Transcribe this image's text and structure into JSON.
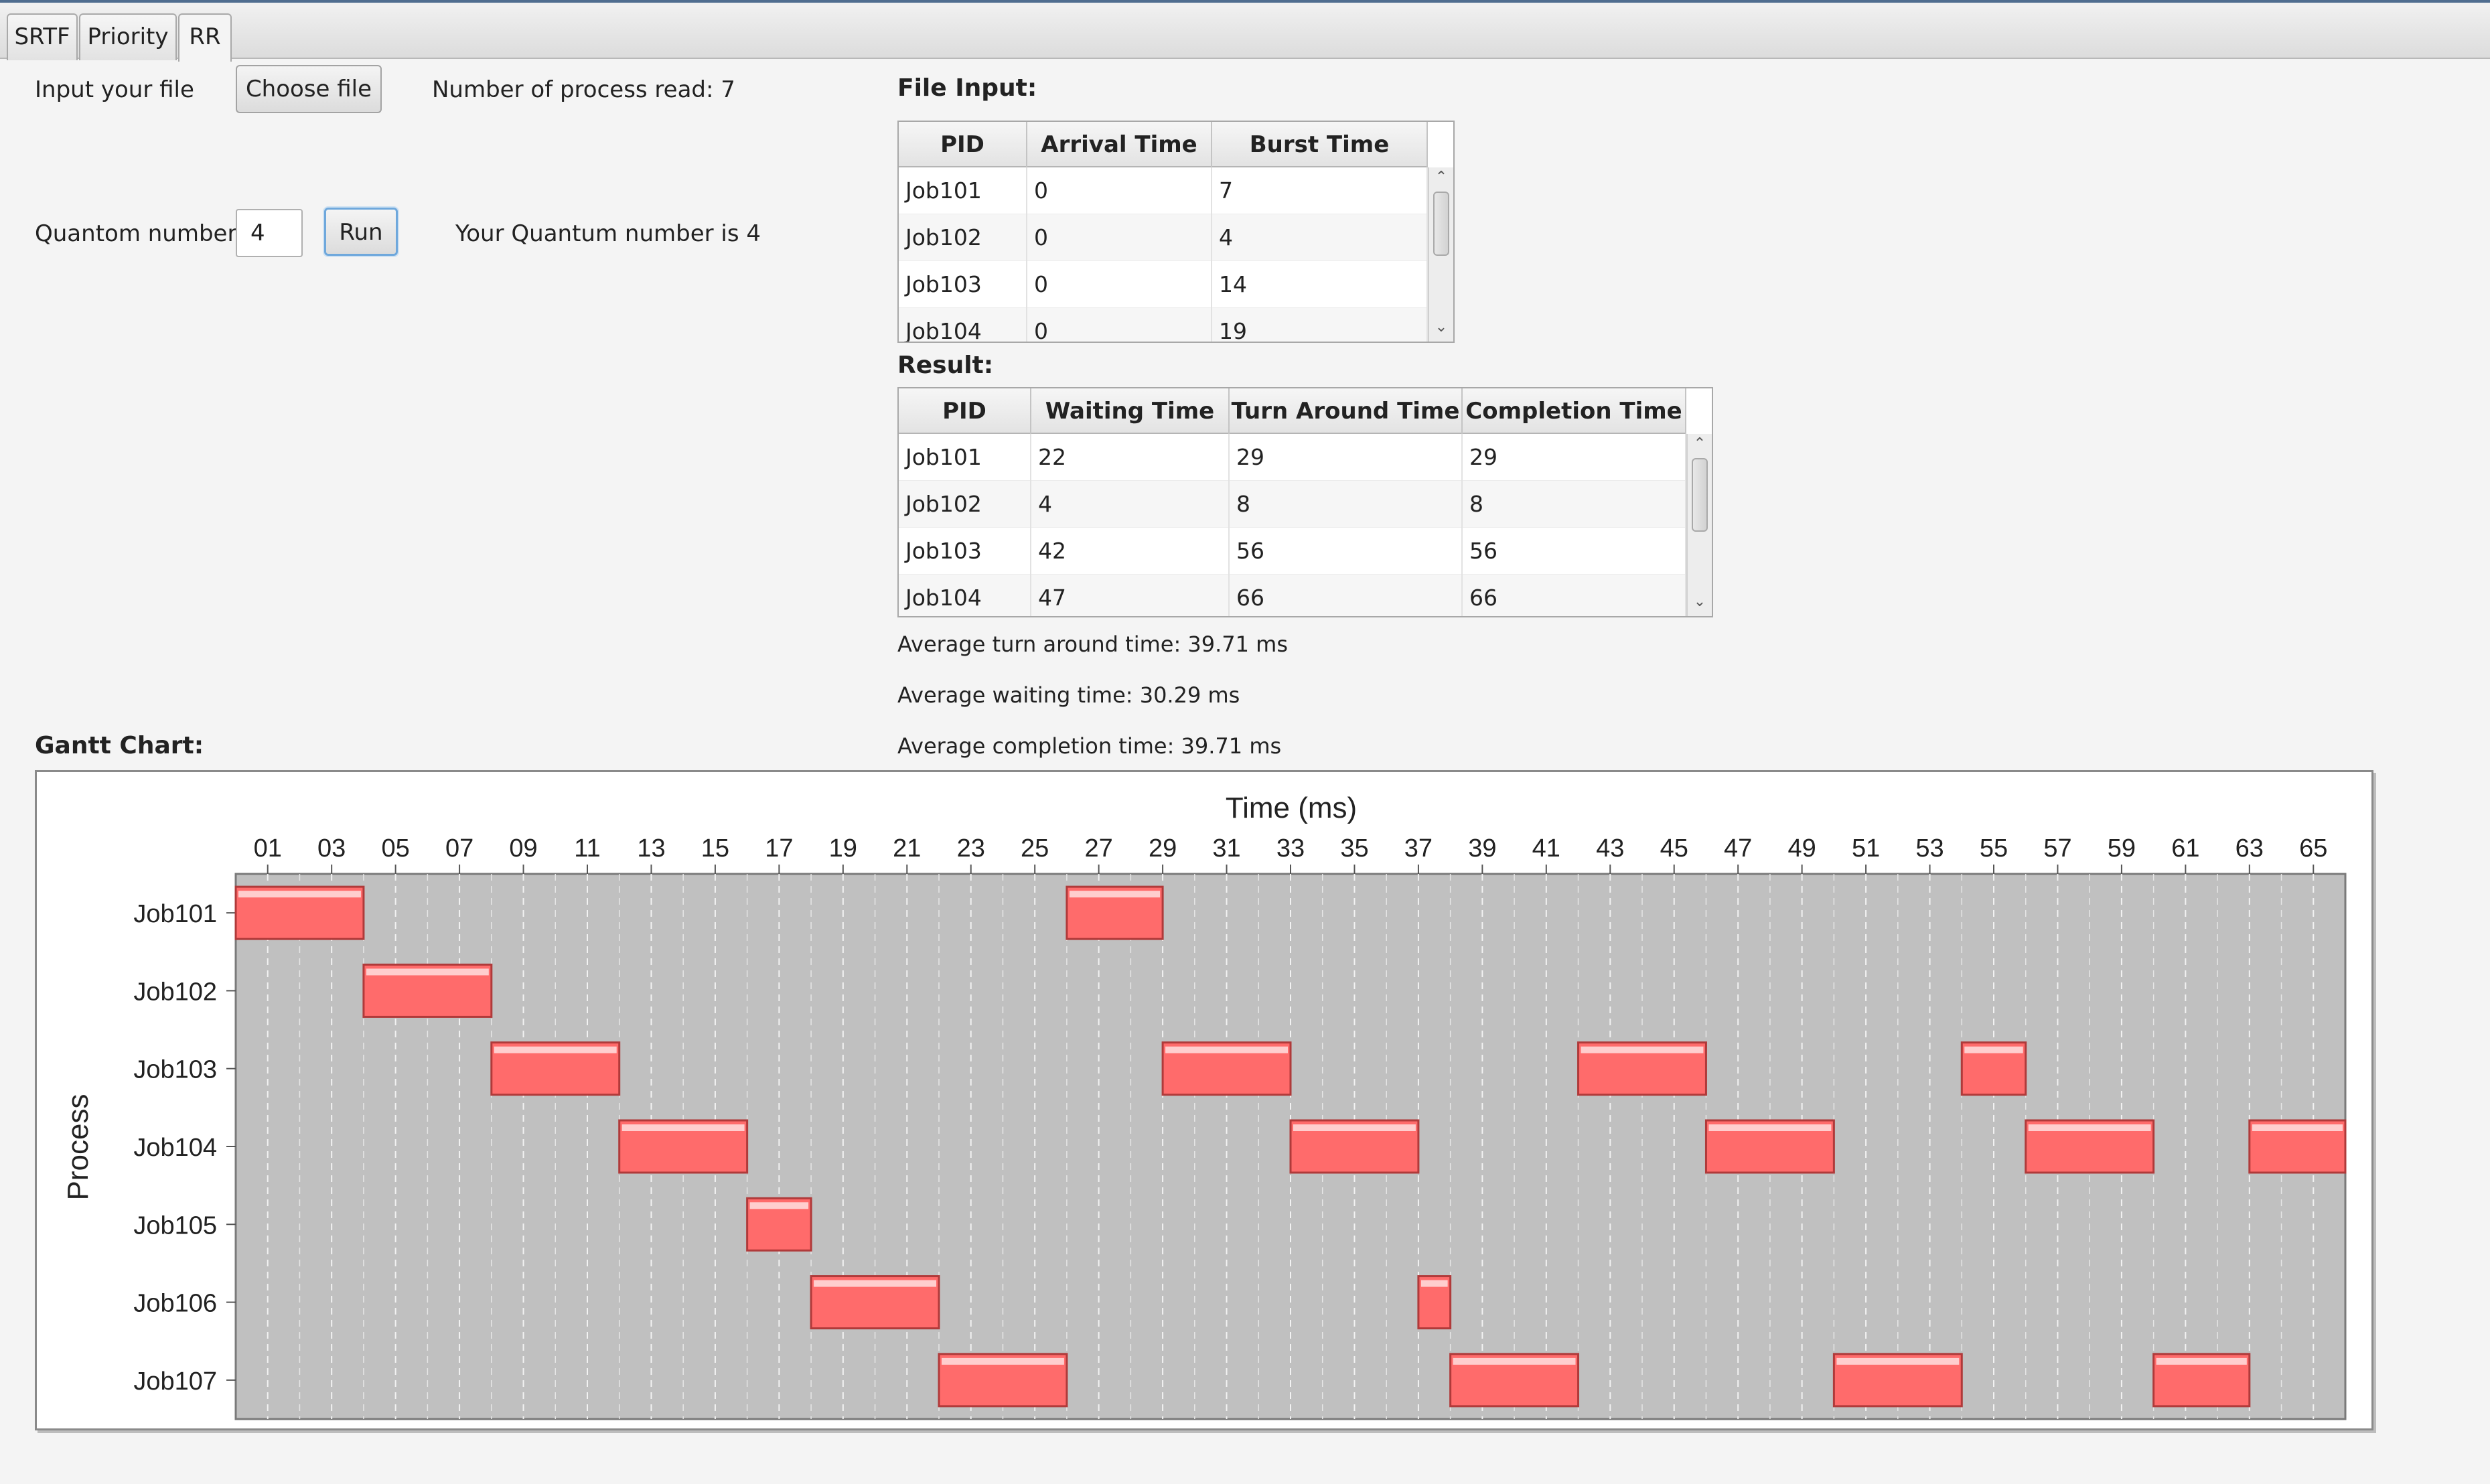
{
  "tabs": [
    {
      "label": "SRTF",
      "active": false
    },
    {
      "label": "Priority",
      "active": false
    },
    {
      "label": "RR",
      "active": true
    }
  ],
  "file_input": {
    "label": "Input your file",
    "button_label": "Choose file",
    "status": "Number of process read: 7"
  },
  "quantum": {
    "label": "Quantom number",
    "value": "4",
    "run_label": "Run",
    "status": "Your Quantum number is 4"
  },
  "file_table": {
    "title": "File Input:",
    "columns": [
      "PID",
      "Arrival Time",
      "Burst Time"
    ],
    "rows": [
      [
        "Job101",
        "0",
        "7"
      ],
      [
        "Job102",
        "0",
        "4"
      ],
      [
        "Job103",
        "0",
        "14"
      ],
      [
        "Job104",
        "0",
        "19"
      ]
    ]
  },
  "result_table": {
    "title": "Result:",
    "columns": [
      "PID",
      "Waiting Time",
      "Turn Around Time",
      "Completion Time"
    ],
    "rows": [
      [
        "Job101",
        "22",
        "29",
        "29"
      ],
      [
        "Job102",
        "4",
        "8",
        "8"
      ],
      [
        "Job103",
        "42",
        "56",
        "56"
      ],
      [
        "Job104",
        "47",
        "66",
        "66"
      ]
    ]
  },
  "averages": {
    "turnaround": "Average turn around time:  39.71 ms",
    "waiting": "Average waiting time:  30.29 ms",
    "completion": "Average completion time:  39.71 ms"
  },
  "gantt_title": "Gantt Chart:",
  "colors": {
    "bar": "#ff6b6b",
    "bar_border": "#b03a3a",
    "plot_bg": "#c0c0c0"
  },
  "chart_data": {
    "type": "gantt",
    "xlabel": "Time (ms)",
    "ylabel": "Process",
    "xlim": [
      0,
      66
    ],
    "x_tick_labels": [
      "01",
      "03",
      "05",
      "07",
      "09",
      "11",
      "13",
      "15",
      "17",
      "19",
      "21",
      "23",
      "25",
      "27",
      "29",
      "31",
      "33",
      "35",
      "37",
      "39",
      "41",
      "43",
      "45",
      "47",
      "49",
      "51",
      "53",
      "55",
      "57",
      "59",
      "61",
      "63",
      "65"
    ],
    "categories": [
      "Job101",
      "Job102",
      "Job103",
      "Job104",
      "Job105",
      "Job106",
      "Job107"
    ],
    "segments": [
      {
        "process": "Job101",
        "start": 0,
        "end": 4
      },
      {
        "process": "Job102",
        "start": 4,
        "end": 8
      },
      {
        "process": "Job103",
        "start": 8,
        "end": 12
      },
      {
        "process": "Job104",
        "start": 12,
        "end": 16
      },
      {
        "process": "Job105",
        "start": 16,
        "end": 18
      },
      {
        "process": "Job106",
        "start": 18,
        "end": 22
      },
      {
        "process": "Job107",
        "start": 22,
        "end": 26
      },
      {
        "process": "Job101",
        "start": 26,
        "end": 29
      },
      {
        "process": "Job103",
        "start": 29,
        "end": 33
      },
      {
        "process": "Job104",
        "start": 33,
        "end": 37
      },
      {
        "process": "Job106",
        "start": 37,
        "end": 38
      },
      {
        "process": "Job107",
        "start": 38,
        "end": 42
      },
      {
        "process": "Job103",
        "start": 42,
        "end": 46
      },
      {
        "process": "Job104",
        "start": 46,
        "end": 50
      },
      {
        "process": "Job107",
        "start": 50,
        "end": 54
      },
      {
        "process": "Job103",
        "start": 54,
        "end": 56
      },
      {
        "process": "Job104",
        "start": 56,
        "end": 60
      },
      {
        "process": "Job107",
        "start": 60,
        "end": 63
      },
      {
        "process": "Job104",
        "start": 63,
        "end": 66
      }
    ],
    "grid": true,
    "legend": "none"
  }
}
